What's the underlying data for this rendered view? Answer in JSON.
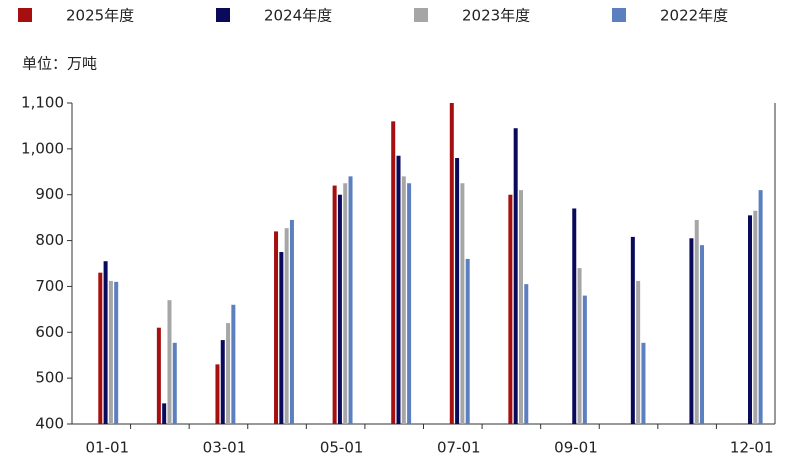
{
  "chart_data": {
    "type": "bar",
    "annotation": "单位：万吨",
    "categories": [
      "01-01",
      null,
      "03-01",
      null,
      "05-01",
      null,
      "07-01",
      null,
      "09-01",
      null,
      null,
      "12-01"
    ],
    "series": [
      {
        "name": "2025年度",
        "color": "#a50f0f",
        "values": [
          730,
          610,
          530,
          820,
          920,
          1060,
          1100,
          900,
          null,
          null,
          null,
          null
        ]
      },
      {
        "name": "2024年度",
        "color": "#0a0a5c",
        "values": [
          755,
          445,
          583,
          775,
          900,
          985,
          980,
          1045,
          870,
          808,
          805,
          855
        ]
      },
      {
        "name": "2023年度",
        "color": "#a6a6a6",
        "values": [
          712,
          670,
          620,
          827,
          925,
          940,
          925,
          910,
          740,
          712,
          845,
          865
        ]
      },
      {
        "name": "2022年度",
        "color": "#5b7fbf",
        "values": [
          710,
          577,
          660,
          845,
          940,
          925,
          760,
          705,
          680,
          577,
          790,
          910
        ]
      }
    ],
    "ylim": [
      400,
      1100
    ],
    "yticks": [
      400,
      500,
      600,
      700,
      800,
      900,
      {
        "value": 1000,
        "label": "1,000"
      },
      {
        "value": 1100,
        "label": "1,100"
      }
    ]
  }
}
